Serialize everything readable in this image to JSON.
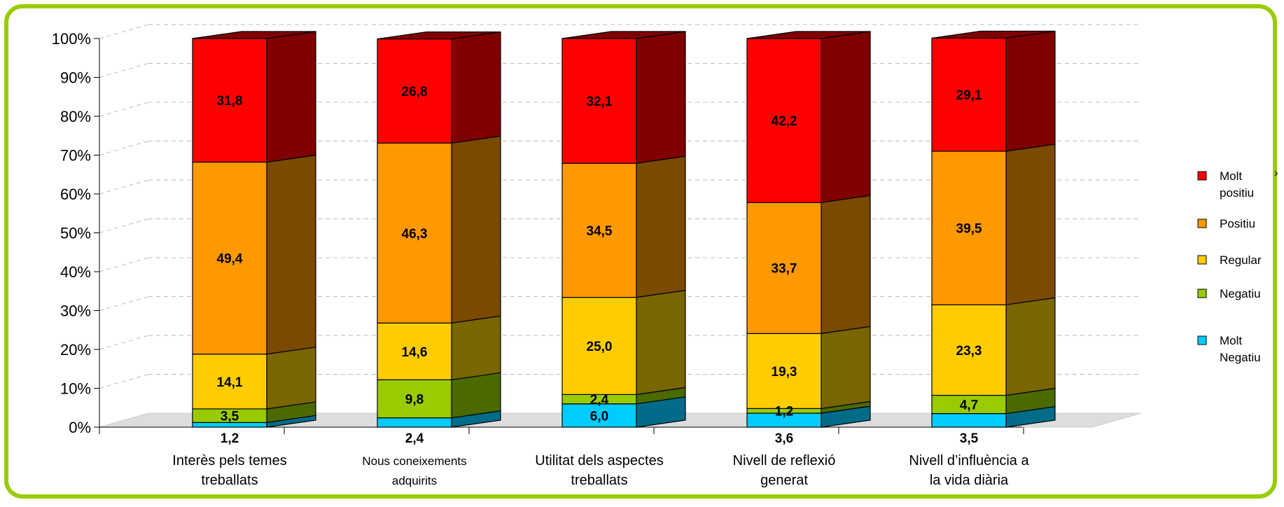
{
  "chart_data": {
    "type": "bar",
    "stacked": true,
    "normalized_percent": true,
    "three_d": true,
    "categories": [
      [
        "Interès pels temes",
        "treballats"
      ],
      [
        "Nous coneixements",
        "adquirits"
      ],
      [
        "Utilitat dels aspectes",
        "treballats"
      ],
      [
        "Nivell de reflexió",
        "generat"
      ],
      [
        "Nivell d’influència a",
        "la vida diària"
      ]
    ],
    "series": [
      {
        "name": "Molt Negatiu",
        "legend_lines": [
          "Molt",
          "Negatiu"
        ],
        "color": "#00ccff",
        "side_color": "#006c8a",
        "values": [
          1.2,
          2.4,
          6.0,
          3.6,
          3.5
        ]
      },
      {
        "name": "Negatiu",
        "legend_lines": [
          "Negatiu"
        ],
        "color": "#99cc00",
        "side_color": "#4a6a00",
        "values": [
          3.5,
          9.8,
          2.4,
          1.2,
          4.7
        ]
      },
      {
        "name": "Regular",
        "legend_lines": [
          "Regular"
        ],
        "color": "#ffcc00",
        "side_color": "#7a6600",
        "values": [
          14.1,
          14.6,
          25.0,
          19.3,
          23.3
        ]
      },
      {
        "name": "Positiu",
        "legend_lines": [
          "Positiu"
        ],
        "color": "#ff9900",
        "side_color": "#7a4a00",
        "values": [
          49.4,
          46.3,
          34.5,
          33.7,
          39.5
        ]
      },
      {
        "name": "Molt positiu",
        "legend_lines": [
          "Molt",
          "positiu"
        ],
        "color": "#ff0000",
        "side_color": "#800000",
        "values": [
          31.8,
          26.8,
          32.1,
          42.2,
          29.1
        ]
      }
    ],
    "value_labels": [
      [
        "1,2",
        "3,5",
        "14,1",
        "49,4",
        "31,8"
      ],
      [
        "2,4",
        "9,8",
        "14,6",
        "46,3",
        "26,8"
      ],
      [
        "6,0",
        "2,4",
        "25,0",
        "34,5",
        "32,1"
      ],
      [
        "3,6",
        "1,2",
        "19,3",
        "33,7",
        "42,2"
      ],
      [
        "3,5",
        "4,7",
        "23,3",
        "39,5",
        "29,1"
      ]
    ],
    "y_ticks": [
      "0%",
      "10%",
      "20%",
      "30%",
      "40%",
      "50%",
      "60%",
      "70%",
      "80%",
      "90%",
      "100%"
    ],
    "ylim": [
      0,
      100
    ],
    "grid": true,
    "legend_position": "right",
    "legend_order": [
      "Molt positiu",
      "Positiu",
      "Regular",
      "Negatiu",
      "Molt Negatiu"
    ],
    "stray_mark": "›",
    "frame_color": "#99cc00"
  }
}
